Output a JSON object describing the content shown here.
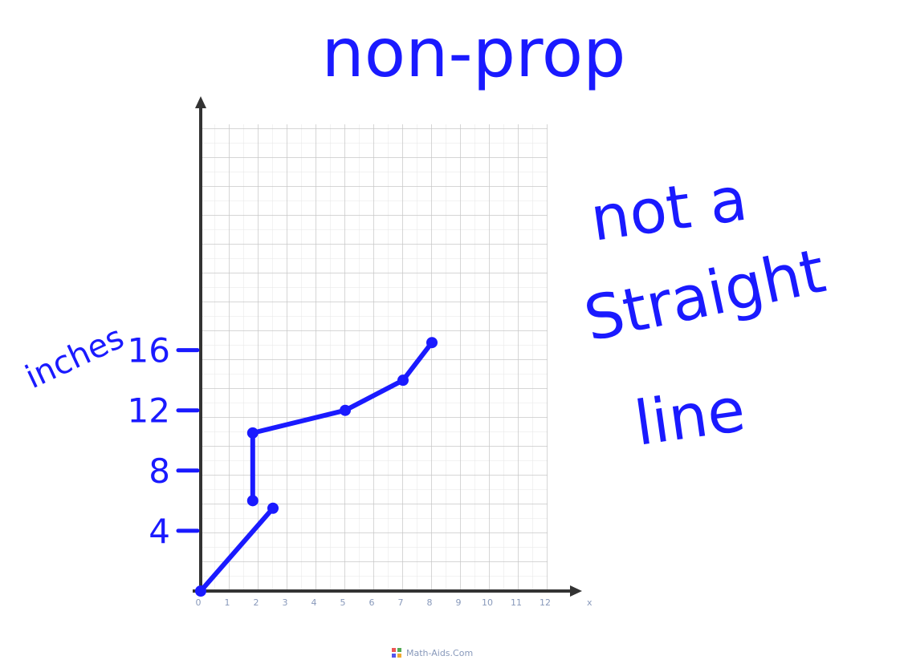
{
  "chart_data": {
    "type": "line",
    "title": "non-prop",
    "annotation": [
      "not a",
      "Straight",
      "line"
    ],
    "ylabel": "inches",
    "xlabel": "x",
    "source": "Math-Aids.Com",
    "xlim": [
      0,
      12
    ],
    "ylim": [
      0,
      31
    ],
    "xticks": [
      0,
      1,
      2,
      3,
      4,
      5,
      6,
      7,
      8,
      9,
      10,
      11,
      12
    ],
    "yticks": [
      4,
      8,
      12,
      16
    ],
    "series": [
      {
        "color": "#1a1aff",
        "x": [
          0,
          2.5
        ],
        "values": [
          0,
          5.5
        ]
      },
      {
        "color": "#1a1aff",
        "x": [
          1.8,
          1.8,
          5,
          7,
          8
        ],
        "values": [
          6,
          10.5,
          12,
          14,
          16.5
        ]
      }
    ]
  }
}
